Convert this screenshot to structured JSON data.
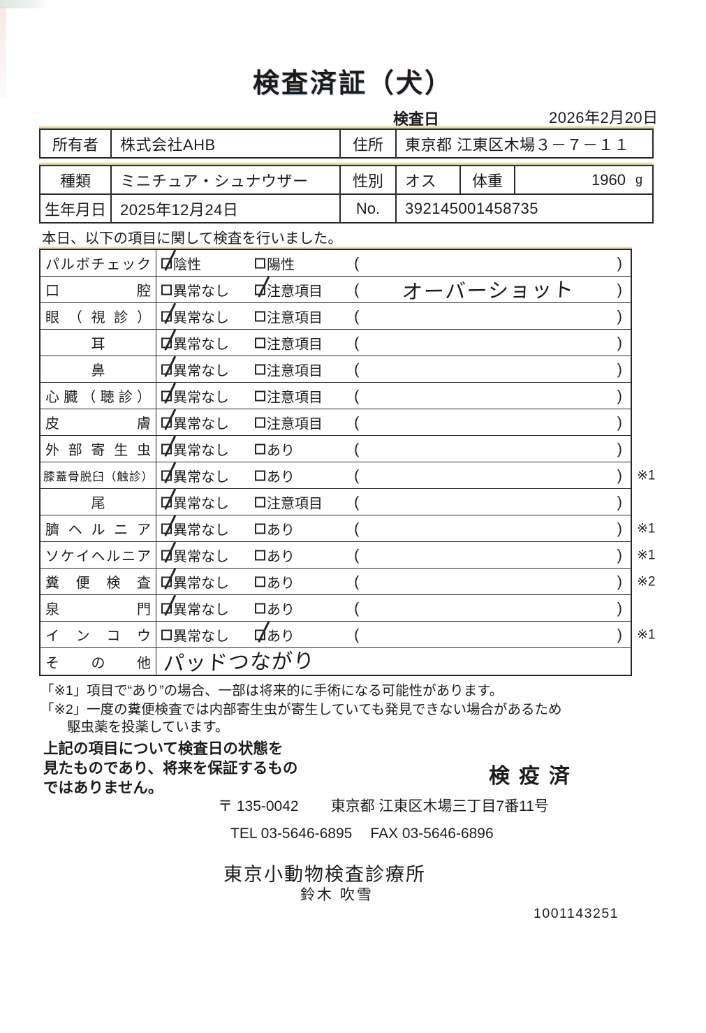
{
  "page": {
    "title": "検査済証（犬）",
    "inspection_date_label": "検査日",
    "inspection_date": "2026年2月20日",
    "intro": "本日、以下の項目に関して検査を行いました。"
  },
  "owner_table": {
    "owner_label": "所有者",
    "owner_value": "株式会社AHB",
    "address_label": "住所",
    "address_value": "東京都 江東区木場３－７－１１"
  },
  "pet_table": {
    "breed_label": "種類",
    "breed_value": "ミニチュア・シュナウザー",
    "sex_label": "性別",
    "sex_value": "オス",
    "weight_label": "体重",
    "weight_value": "1960",
    "weight_unit": "g",
    "birth_label": "生年月日",
    "birth_value": "2025年12月24日",
    "no_label": "No.",
    "no_value": "392145001458735"
  },
  "inspection_table": {
    "rows": [
      {
        "item": "パルボチェック",
        "layout": "spread",
        "options": [
          {
            "label": "陰性",
            "checked": true
          },
          {
            "label": "陽性",
            "checked": false
          }
        ],
        "comment": "",
        "note": ""
      },
      {
        "item": "口腔",
        "layout": "spread",
        "options": [
          {
            "label": "異常なし",
            "checked": false
          },
          {
            "label": "注意項目",
            "checked": true
          }
        ],
        "comment": "オーバーショット",
        "note": ""
      },
      {
        "item": "眼（視診）",
        "layout": "spread",
        "options": [
          {
            "label": "異常なし",
            "checked": true
          },
          {
            "label": "注意項目",
            "checked": false
          }
        ],
        "comment": "",
        "note": ""
      },
      {
        "item": "耳",
        "layout": "center",
        "options": [
          {
            "label": "異常なし",
            "checked": true
          },
          {
            "label": "注意項目",
            "checked": false
          }
        ],
        "comment": "",
        "note": ""
      },
      {
        "item": "鼻",
        "layout": "center",
        "options": [
          {
            "label": "異常なし",
            "checked": true
          },
          {
            "label": "注意項目",
            "checked": false
          }
        ],
        "comment": "",
        "note": ""
      },
      {
        "item": "心臓（聴診）",
        "layout": "spread",
        "options": [
          {
            "label": "異常なし",
            "checked": true
          },
          {
            "label": "注意項目",
            "checked": false
          }
        ],
        "comment": "",
        "note": ""
      },
      {
        "item": "皮膚",
        "layout": "spread",
        "options": [
          {
            "label": "異常なし",
            "checked": true
          },
          {
            "label": "注意項目",
            "checked": false
          }
        ],
        "comment": "",
        "note": ""
      },
      {
        "item": "外部寄生虫",
        "layout": "spread",
        "options": [
          {
            "label": "異常なし",
            "checked": true
          },
          {
            "label": "あり",
            "checked": false
          }
        ],
        "comment": "",
        "note": ""
      },
      {
        "item": "膝蓋骨脱臼（触診）",
        "layout": "spread",
        "options": [
          {
            "label": "異常なし",
            "checked": true
          },
          {
            "label": "あり",
            "checked": false
          }
        ],
        "comment": "",
        "note": "※1"
      },
      {
        "item": "尾",
        "layout": "center",
        "options": [
          {
            "label": "異常なし",
            "checked": true
          },
          {
            "label": "注意項目",
            "checked": false
          }
        ],
        "comment": "",
        "note": ""
      },
      {
        "item": "臍ヘルニア",
        "layout": "spread",
        "options": [
          {
            "label": "異常なし",
            "checked": true
          },
          {
            "label": "あり",
            "checked": false
          }
        ],
        "comment": "",
        "note": "※1"
      },
      {
        "item": "ソケイヘルニア",
        "layout": "spread",
        "options": [
          {
            "label": "異常なし",
            "checked": true
          },
          {
            "label": "あり",
            "checked": false
          }
        ],
        "comment": "",
        "note": "※1"
      },
      {
        "item": "糞便検査",
        "layout": "spread",
        "options": [
          {
            "label": "異常なし",
            "checked": true
          },
          {
            "label": "あり",
            "checked": false
          }
        ],
        "comment": "",
        "note": "※2"
      },
      {
        "item": "泉門",
        "layout": "spread",
        "options": [
          {
            "label": "異常なし",
            "checked": true
          },
          {
            "label": "あり",
            "checked": false
          }
        ],
        "comment": "",
        "note": ""
      },
      {
        "item": "インコウ",
        "layout": "spread",
        "options": [
          {
            "label": "異常なし",
            "checked": false
          },
          {
            "label": "あり",
            "checked": true
          }
        ],
        "comment": "",
        "note": "※1"
      },
      {
        "item": "その他",
        "layout": "spread",
        "options": [],
        "handwritten": "パッドつながり",
        "note": ""
      }
    ]
  },
  "notes": {
    "note1": "「※1」項目で“あり”の場合、一部は将来的に手術になる可能性があります。",
    "note2_line1": "「※2」一度の糞便検査では内部寄生虫が寄生していても発見できない場合があるため",
    "note2_line2": "駆虫薬を投薬しています。",
    "disclaimer_line1": "上記の項目について検査日の状態を",
    "disclaimer_line2": "見たものであり、将来を保証するもの",
    "disclaimer_line3": "ではありません。",
    "quarantine_stamp": "検疫済"
  },
  "footer": {
    "postal": "〒 135-0042",
    "address": "東京都 江東区木場三丁目7番11号",
    "tel": "TEL 03-5646-6895",
    "fax": "FAX 03-5646-6896",
    "clinic": "東京小動物検査診療所",
    "vet": "鈴木 吹雪",
    "serial": "1001143251"
  }
}
